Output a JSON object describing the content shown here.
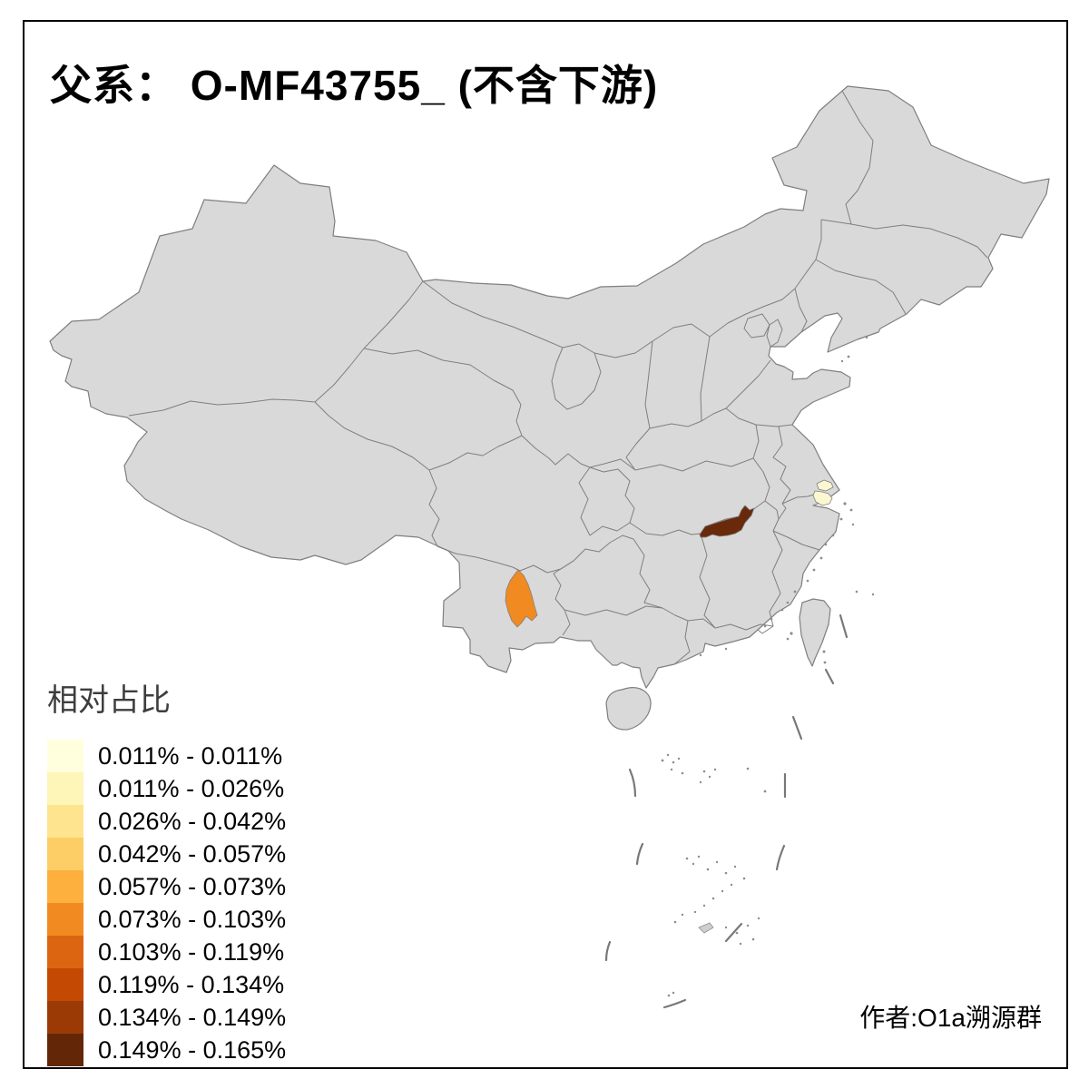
{
  "title": "父系： O-MF43755_ (不含下游)",
  "legend": {
    "title": "相对占比",
    "items": [
      {
        "range": "0.011% - 0.011%",
        "color": "#FFFFDE"
      },
      {
        "range": "0.011% - 0.026%",
        "color": "#FEF5B9"
      },
      {
        "range": "0.026% - 0.042%",
        "color": "#FEE48F"
      },
      {
        "range": "0.042% - 0.057%",
        "color": "#FDCD66"
      },
      {
        "range": "0.057% - 0.073%",
        "color": "#FDB03E"
      },
      {
        "range": "0.073% - 0.103%",
        "color": "#F28A22"
      },
      {
        "range": "0.103% - 0.119%",
        "color": "#DC6511"
      },
      {
        "range": "0.119% - 0.134%",
        "color": "#C44A03"
      },
      {
        "range": "0.134% - 0.149%",
        "color": "#9C3A06"
      },
      {
        "range": "0.149% - 0.165%",
        "color": "#632708"
      }
    ]
  },
  "attribution": "作者:O1a溯源群",
  "map": {
    "base_fill": "#D9D9D9",
    "border_color": "#7F7F7F",
    "sea_fill": "#FFFFFF",
    "regions": [
      {
        "name": "shanghai",
        "value_range": "0.011% - 0.011%",
        "color": "#FBF7D0"
      },
      {
        "name": "central-yunnan",
        "value_range": "0.073% - 0.103%",
        "color": "#F28A22"
      },
      {
        "name": "north-jiangxi",
        "value_range": "0.149% - 0.165%",
        "color": "#682A0B"
      }
    ]
  },
  "chart_data": {
    "type": "choropleth",
    "title": "父系： O-MF43755_ (不含下游)",
    "legend_title": "相对占比",
    "unit": "%",
    "classes": [
      "0.011% - 0.011%",
      "0.011% - 0.026%",
      "0.026% - 0.042%",
      "0.042% - 0.057%",
      "0.057% - 0.073%",
      "0.073% - 0.103%",
      "0.103% - 0.119%",
      "0.119% - 0.134%",
      "0.134% - 0.149%",
      "0.149% - 0.165%"
    ],
    "colored_regions": [
      {
        "region": "shanghai",
        "class": "0.011% - 0.011%"
      },
      {
        "region": "central-yunnan",
        "class": "0.073% - 0.103%"
      },
      {
        "region": "north-jiangxi",
        "class": "0.149% - 0.165%"
      }
    ],
    "legend_position": "bottom-left"
  }
}
